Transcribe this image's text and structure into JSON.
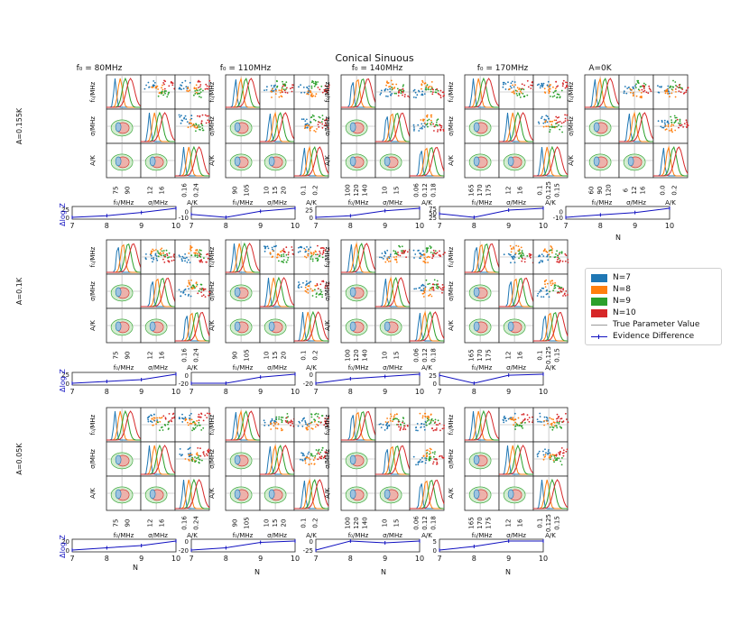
{
  "figure": {
    "title": "Conical Sinuous",
    "column_titles": [
      "f₀ = 80MHz",
      "f₀ = 110MHz",
      "f₀ = 140MHz",
      "f₀ = 170MHz",
      "A=0K"
    ],
    "row_labels": [
      "A=0.155K",
      "A=0.1K",
      "A=0.05K"
    ],
    "param_labels": [
      "f₀/MHz",
      "σ/MHz",
      "A/K"
    ],
    "evidence_label": "Δlog Z",
    "n_axis_label": "N"
  },
  "legend": {
    "entries": [
      {
        "label": "N=7",
        "color": "#1f77b4"
      },
      {
        "label": "N=8",
        "color": "#ff7f0e"
      },
      {
        "label": "N=9",
        "color": "#2ca02c"
      },
      {
        "label": "N=10",
        "color": "#d62728"
      },
      {
        "label": "True Parameter Value",
        "color": "#999999"
      },
      {
        "label": "Evidence Difference",
        "color": "#1010c0"
      }
    ]
  },
  "chart_data": [
    {
      "type": "line",
      "panel": "A=0.155K, f0=80MHz",
      "x": [
        7,
        8,
        9,
        10
      ],
      "y": [
        0,
        5,
        15,
        28
      ],
      "yticks": [
        0,
        25
      ],
      "xticks": [
        7,
        8,
        9,
        10
      ]
    },
    {
      "type": "line",
      "panel": "A=0.155K, f0=110MHz",
      "x": [
        7,
        8,
        9,
        10
      ],
      "y": [
        -5,
        -10,
        0,
        5
      ],
      "yticks": [
        -10,
        0
      ],
      "xticks": [
        7,
        8,
        9,
        10
      ]
    },
    {
      "type": "line",
      "panel": "A=0.155K, f0=140MHz",
      "x": [
        7,
        8,
        9,
        10
      ],
      "y": [
        0,
        5,
        22,
        30
      ],
      "yticks": [
        0,
        25
      ],
      "xticks": [
        7,
        8,
        9,
        10
      ]
    },
    {
      "type": "line",
      "panel": "A=0.155K, f0=170MHz",
      "x": [
        7,
        8,
        9,
        10
      ],
      "y": [
        45,
        25,
        65,
        75
      ],
      "yticks": [
        25,
        50,
        75
      ],
      "xticks": [
        7,
        8,
        9,
        10
      ]
    },
    {
      "type": "line",
      "panel": "A=0K",
      "x": [
        7,
        8,
        9,
        10
      ],
      "y": [
        -10,
        -6,
        -2,
        5
      ],
      "yticks": [
        -10,
        0
      ],
      "xticks": [
        7,
        8,
        9,
        10
      ]
    },
    {
      "type": "line",
      "panel": "A=0.1K, f0=80MHz",
      "x": [
        7,
        8,
        9,
        10
      ],
      "y": [
        0,
        5,
        10,
        25
      ],
      "yticks": [
        0,
        25
      ],
      "xticks": [
        7,
        8,
        9,
        10
      ]
    },
    {
      "type": "line",
      "panel": "A=0.1K, f0=110MHz",
      "x": [
        7,
        8,
        9,
        10
      ],
      "y": [
        -20,
        -20,
        -5,
        2
      ],
      "yticks": [
        -20,
        0
      ],
      "xticks": [
        7,
        8,
        9,
        10
      ]
    },
    {
      "type": "line",
      "panel": "A=0.1K, f0=140MHz",
      "x": [
        7,
        8,
        9,
        10
      ],
      "y": [
        -20,
        -10,
        -5,
        0
      ],
      "yticks": [
        -20,
        0
      ],
      "xticks": [
        7,
        8,
        9,
        10
      ]
    },
    {
      "type": "line",
      "panel": "A=0.1K, f0=170MHz",
      "x": [
        7,
        8,
        9,
        10
      ],
      "y": [
        25,
        0,
        25,
        28
      ],
      "yticks": [
        0,
        25
      ],
      "xticks": [
        7,
        8,
        9,
        10
      ]
    },
    {
      "type": "line",
      "panel": "A=0.05K, f0=80MHz",
      "x": [
        7,
        8,
        9,
        10
      ],
      "y": [
        0,
        5,
        10,
        20
      ],
      "yticks": [
        0,
        20
      ],
      "xticks": [
        7,
        8,
        9,
        10
      ]
    },
    {
      "type": "line",
      "panel": "A=0.05K, f0=110MHz",
      "x": [
        7,
        8,
        9,
        10
      ],
      "y": [
        -20,
        -15,
        -3,
        0
      ],
      "yticks": [
        -20,
        0
      ],
      "xticks": [
        7,
        8,
        9,
        10
      ]
    },
    {
      "type": "line",
      "panel": "A=0.05K, f0=140MHz",
      "x": [
        7,
        8,
        9,
        10
      ],
      "y": [
        -25,
        0,
        -5,
        0
      ],
      "yticks": [
        -25,
        0
      ],
      "xticks": [
        7,
        8,
        9,
        10
      ]
    },
    {
      "type": "line",
      "panel": "A=0.05K, f0=170MHz",
      "x": [
        7,
        8,
        9,
        10
      ],
      "y": [
        0,
        2,
        5,
        5
      ],
      "yticks": [
        0,
        5
      ],
      "xticks": [
        7,
        8,
        9,
        10
      ]
    }
  ]
}
